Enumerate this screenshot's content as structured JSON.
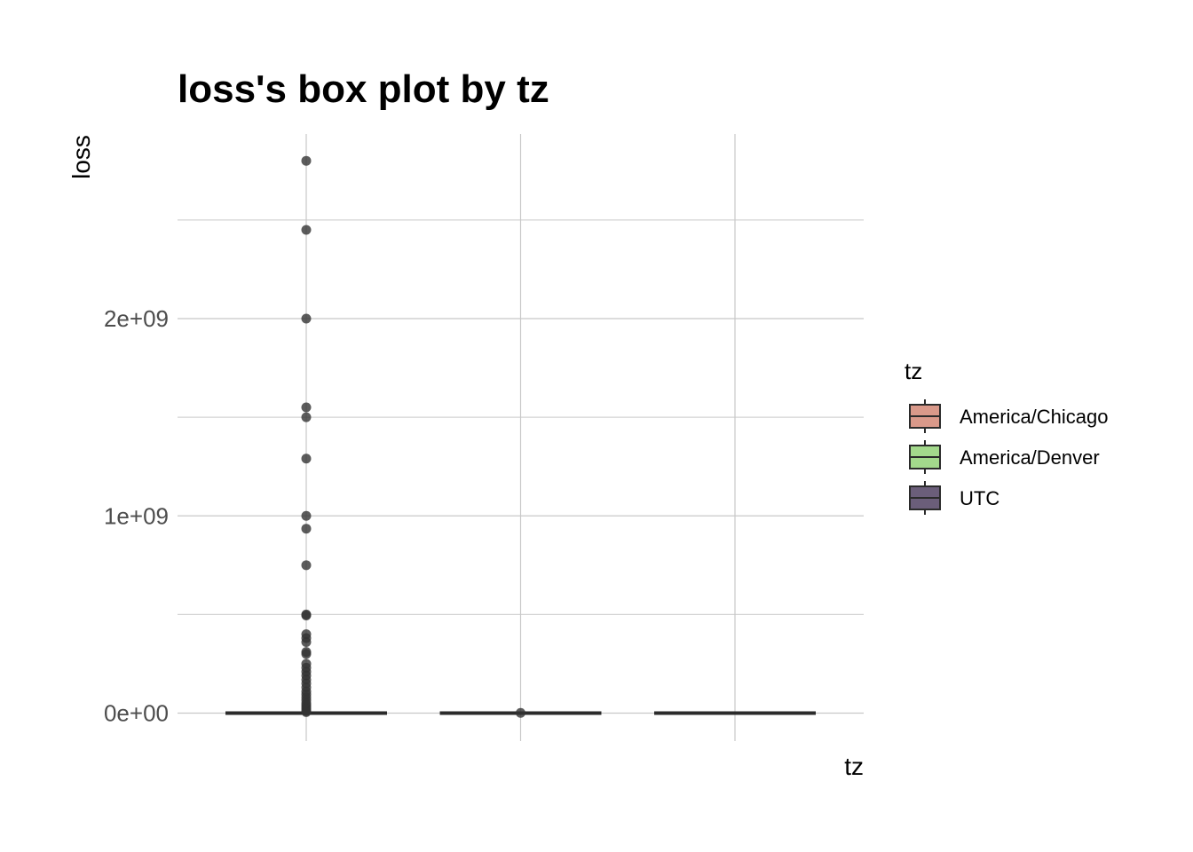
{
  "chart_data": {
    "type": "box",
    "title": "loss's box plot by tz",
    "xlabel": "tz",
    "ylabel": "loss",
    "ylim": [
      -140000000,
      2940000000
    ],
    "y_ticks": [
      {
        "value": 0,
        "label": "0e+00"
      },
      {
        "value": 1000000000,
        "label": "1e+09"
      },
      {
        "value": 2000000000,
        "label": "2e+09"
      }
    ],
    "y_minor_gridlines": [
      500000000,
      1500000000,
      2500000000
    ],
    "grid": true,
    "x_tick_labels_shown": false,
    "legend": {
      "title": "tz",
      "placement": "right",
      "entries": [
        {
          "label": "America/Chicago",
          "color": "#d9998a"
        },
        {
          "label": "America/Denver",
          "color": "#a3d98c"
        },
        {
          "label": "UTC",
          "color": "#6b5e7a"
        }
      ]
    },
    "series": [
      {
        "name": "America/Chicago",
        "color": "#d9998a",
        "box": {
          "q1": 0,
          "median": 0,
          "q3": 0,
          "whisker_low": 0,
          "whisker_high": 0
        },
        "outliers": [
          2800000000,
          2450000000,
          2000000000,
          1550000000,
          1500000000,
          1290000000,
          1000000000,
          935000000,
          750000000,
          500000000,
          495000000,
          400000000,
          380000000,
          360000000,
          310000000,
          300000000,
          250000000,
          230000000,
          210000000,
          190000000,
          170000000,
          150000000,
          130000000,
          110000000,
          95000000,
          80000000,
          65000000,
          50000000,
          40000000,
          30000000,
          20000000,
          10000000,
          5000000
        ]
      },
      {
        "name": "America/Denver",
        "color": "#a3d98c",
        "box": {
          "q1": 0,
          "median": 0,
          "q3": 0,
          "whisker_low": 0,
          "whisker_high": 0
        },
        "outliers": [
          1000000
        ]
      },
      {
        "name": "UTC",
        "color": "#6b5e7a",
        "box": {
          "q1": 0,
          "median": 0,
          "q3": 0,
          "whisker_low": 0,
          "whisker_high": 0
        },
        "outliers": []
      }
    ]
  }
}
